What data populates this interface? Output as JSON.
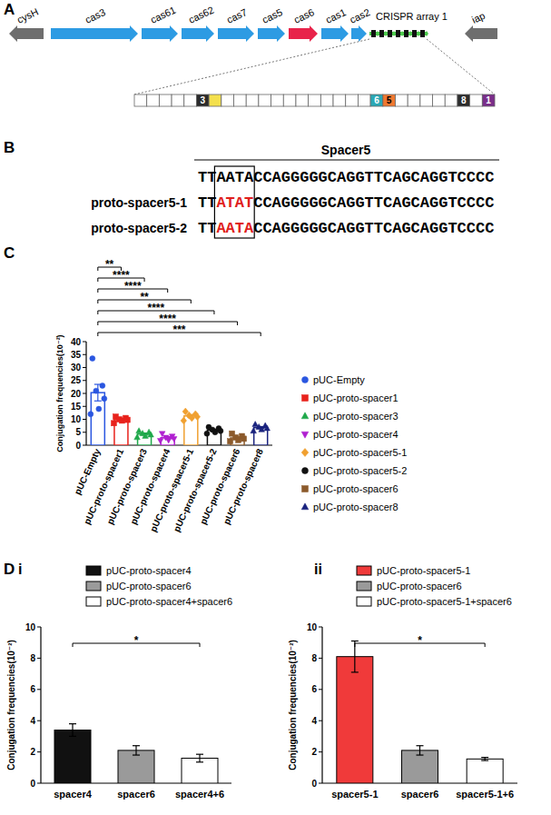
{
  "panels": [
    "A",
    "B",
    "C",
    "D"
  ],
  "gene_diagram": {
    "genes": [
      {
        "label": "cysH",
        "color": "#6e6e6e",
        "direction": "left"
      },
      {
        "label": "cas3",
        "color": "#2d9be3",
        "direction": "right"
      },
      {
        "label": "cas61",
        "color": "#2d9be3",
        "direction": "right"
      },
      {
        "label": "cas62",
        "color": "#2d9be3",
        "direction": "right"
      },
      {
        "label": "cas7",
        "color": "#2d9be3",
        "direction": "right"
      },
      {
        "label": "cas5",
        "color": "#2d9be3",
        "direction": "right"
      },
      {
        "label": "cas6",
        "color": "#e8234a",
        "direction": "right"
      },
      {
        "label": "cas1",
        "color": "#2d9be3",
        "direction": "right"
      },
      {
        "label": "cas2",
        "color": "#2d9be3",
        "direction": "right"
      },
      {
        "label": "iap",
        "color": "#6e6e6e",
        "direction": "left"
      }
    ],
    "array": {
      "label": "CRISPR array 1",
      "color": "#4cc94c"
    },
    "spacers": [
      {
        "label": "3",
        "color": "#2b2b2b"
      },
      {
        "color": "#f4e04d"
      },
      {
        "label": "6",
        "color": "#2aa8b5"
      },
      {
        "label": "5",
        "color": "#f07830"
      },
      {
        "label": "8",
        "color": "#2b2b2b"
      },
      {
        "label": "1",
        "color": "#7a2e8a"
      }
    ]
  },
  "sequence": {
    "title": "Spacer5",
    "rows": [
      {
        "prefix": "TT",
        "box": "AATA",
        "suffix": "CCAGGGGGCAGGTTCAGCAGGTCCCC",
        "color": "#000000"
      },
      {
        "name": "proto-spacer5-1",
        "prefix": "TT",
        "box": "ATAT",
        "suffix": "CCAGGGGGCAGGTTCAGCAGGTCCCC",
        "color": "#e0201c"
      },
      {
        "name": "proto-spacer5-2",
        "prefix": "TT",
        "box": "AATA",
        "suffix": "CCAGGGGGCAGGTTCAGCAGGTCCCC",
        "color": "#e0201c"
      }
    ]
  },
  "chart_data": [
    {
      "type": "bar",
      "y_label": "Conjugation frequencies(10⁻²)",
      "categories": [
        "pUC-Empty",
        "pUC-proto-spacer1",
        "pUC-proto-spacer3",
        "pUC-proto-spacer4",
        "pUC-proto-spacer5-1",
        "pUC-proto-spacer5-2",
        "pUC-proto-spacer6",
        "pUC-proto-spacer8"
      ],
      "ylim": [
        0,
        40
      ],
      "yticks": [
        0,
        5,
        10,
        15,
        20,
        25,
        30,
        35,
        40
      ],
      "legend": "right",
      "series": [
        {
          "name": "pUC-Empty",
          "color": "#2a56e0",
          "marker": "circle",
          "values": [
            20.3,
            null,
            null,
            null,
            null,
            null,
            null,
            null
          ],
          "errors": [
            3.2,
            null,
            null,
            null,
            null,
            null,
            null,
            null
          ],
          "points": [
            [
              33.5,
              23,
              21,
              18,
              14,
              12
            ],
            null,
            null,
            null,
            null,
            null,
            null,
            null
          ]
        },
        {
          "name": "pUC-proto-spacer1",
          "color": "#e8221c",
          "marker": "square",
          "values": [
            null,
            9.9,
            null,
            null,
            null,
            null,
            null,
            null
          ],
          "errors": [
            null,
            0.4,
            null,
            null,
            null,
            null,
            null,
            null
          ],
          "points": [
            null,
            [
              11,
              10.5,
              10,
              9.8,
              9.5,
              8.5
            ],
            null,
            null,
            null,
            null,
            null,
            null
          ]
        },
        {
          "name": "pUC-proto-spacer3",
          "color": "#1fa84a",
          "marker": "triangle",
          "values": [
            null,
            null,
            4.3,
            null,
            null,
            null,
            null,
            null
          ],
          "errors": [
            null,
            null,
            0.4,
            null,
            null,
            null,
            null,
            null
          ],
          "points": [
            null,
            null,
            [
              5.5,
              5,
              4.5,
              4,
              3.5,
              3
            ],
            null,
            null,
            null,
            null,
            null
          ]
        },
        {
          "name": "pUC-proto-spacer4",
          "color": "#b020d0",
          "marker": "triangle-down",
          "values": [
            null,
            null,
            null,
            2.9,
            null,
            null,
            null,
            null
          ],
          "errors": [
            null,
            null,
            null,
            0.4,
            null,
            null,
            null,
            null
          ],
          "points": [
            null,
            null,
            null,
            [
              4.5,
              3.5,
              3,
              2.5,
              2,
              1.8
            ],
            null,
            null,
            null,
            null
          ]
        },
        {
          "name": "pUC-proto-spacer5-1",
          "color": "#f0a030",
          "marker": "diamond",
          "values": [
            null,
            null,
            null,
            null,
            11.3,
            null,
            null,
            null
          ],
          "errors": [
            null,
            null,
            null,
            null,
            0.5,
            null,
            null,
            null
          ],
          "points": [
            null,
            null,
            null,
            null,
            [
              13,
              12,
              11.5,
              11,
              10.5,
              9.5
            ],
            null,
            null,
            null
          ]
        },
        {
          "name": "pUC-proto-spacer5-2",
          "color": "#111111",
          "marker": "circle",
          "values": [
            null,
            null,
            null,
            null,
            null,
            5.8,
            null,
            null
          ],
          "errors": [
            null,
            null,
            null,
            null,
            null,
            0.4,
            null,
            null
          ],
          "points": [
            null,
            null,
            null,
            null,
            null,
            [
              7,
              6.5,
              6,
              5.5,
              5,
              4.5
            ],
            null,
            null
          ]
        },
        {
          "name": "pUC-proto-spacer6",
          "color": "#8b5a2b",
          "marker": "square",
          "values": [
            null,
            null,
            null,
            null,
            null,
            null,
            2.8,
            null
          ],
          "errors": [
            null,
            null,
            null,
            null,
            null,
            null,
            0.45,
            null
          ],
          "points": [
            null,
            null,
            null,
            null,
            null,
            null,
            [
              4.5,
              3.5,
              3,
              2.5,
              2,
              1.5
            ],
            null
          ]
        },
        {
          "name": "pUC-proto-spacer8",
          "color": "#1a237e",
          "marker": "triangle",
          "values": [
            null,
            null,
            null,
            null,
            null,
            null,
            null,
            6.8
          ],
          "errors": [
            null,
            null,
            null,
            null,
            null,
            null,
            null,
            0.4
          ],
          "points": [
            null,
            null,
            null,
            null,
            null,
            null,
            null,
            [
              8,
              7.5,
              7,
              6.5,
              6,
              5.5
            ]
          ]
        }
      ],
      "annotations": [
        {
          "from": "pUC-Empty",
          "to": "pUC-proto-spacer1",
          "label": "**"
        },
        {
          "from": "pUC-Empty",
          "to": "pUC-proto-spacer3",
          "label": "****"
        },
        {
          "from": "pUC-Empty",
          "to": "pUC-proto-spacer4",
          "label": "****"
        },
        {
          "from": "pUC-Empty",
          "to": "pUC-proto-spacer5-1",
          "label": "**"
        },
        {
          "from": "pUC-Empty",
          "to": "pUC-proto-spacer5-2",
          "label": "****"
        },
        {
          "from": "pUC-Empty",
          "to": "pUC-proto-spacer6",
          "label": "****"
        },
        {
          "from": "pUC-Empty",
          "to": "pUC-proto-spacer8",
          "label": "***"
        }
      ]
    },
    {
      "type": "bar",
      "subpanel": "i",
      "y_label": "Conjugation frequencies(10⁻²)",
      "categories": [
        "spacer4",
        "spacer6",
        "spacer4+6"
      ],
      "ylim": [
        0,
        10
      ],
      "yticks": [
        0,
        2,
        4,
        6,
        8,
        10
      ],
      "legend": "top",
      "series": [
        {
          "name": "pUC-proto-spacer4",
          "color": "#111111",
          "values": [
            3.4,
            null,
            null
          ],
          "errors": [
            0.4,
            null,
            null
          ]
        },
        {
          "name": "pUC-proto-spacer6",
          "color": "#9a9a9a",
          "values": [
            null,
            2.1,
            null
          ],
          "errors": [
            null,
            0.3,
            null
          ]
        },
        {
          "name": "pUC-proto-spacer4+spacer6",
          "color": "#ffffff",
          "values": [
            null,
            null,
            1.6
          ],
          "errors": [
            null,
            null,
            0.25
          ]
        }
      ],
      "annotations": [
        {
          "from": "spacer4",
          "to": "spacer4+6",
          "label": "*"
        }
      ]
    },
    {
      "type": "bar",
      "subpanel": "ii",
      "y_label": "Conjugation frequencies(10⁻²)",
      "categories": [
        "spacer5-1",
        "spacer6",
        "spacer5-1+6"
      ],
      "ylim": [
        0,
        10
      ],
      "yticks": [
        0,
        2,
        4,
        6,
        8,
        10
      ],
      "legend": "top",
      "series": [
        {
          "name": "pUC-proto-spacer5-1",
          "color": "#f03a3a",
          "values": [
            8.1,
            null,
            null
          ],
          "errors": [
            1.0,
            null,
            null
          ]
        },
        {
          "name": "pUC-proto-spacer6",
          "color": "#9a9a9a",
          "values": [
            null,
            2.1,
            null
          ],
          "errors": [
            null,
            0.3,
            null
          ]
        },
        {
          "name": "pUC-proto-spacer5-1+spacer6",
          "color": "#ffffff",
          "values": [
            null,
            null,
            1.55
          ],
          "errors": [
            null,
            null,
            0.1
          ]
        }
      ],
      "annotations": [
        {
          "from": "spacer5-1",
          "to": "spacer5-1+6",
          "label": "*"
        }
      ]
    }
  ]
}
